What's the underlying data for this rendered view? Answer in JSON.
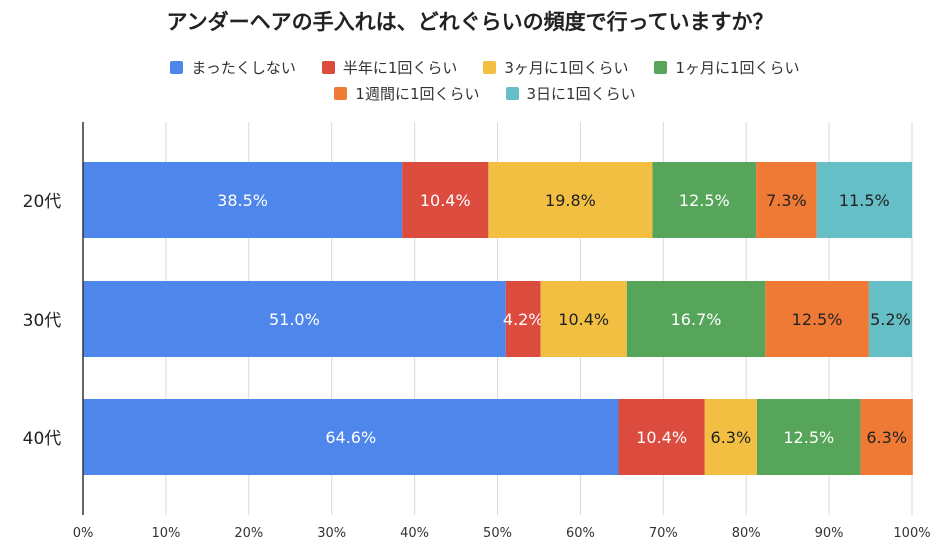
{
  "chart_data": {
    "type": "bar",
    "orientation": "horizontal",
    "stacked": true,
    "title": "アンダーヘアの手入れは、どれぐらいの頻度で行っていますか？",
    "categories": [
      "20代",
      "30代",
      "40代"
    ],
    "series": [
      {
        "name": "まったくしない",
        "color": "#4e86ec",
        "label_color": "#ffffff",
        "values": [
          38.5,
          51.0,
          64.6
        ],
        "labels": [
          "38.5%",
          "51.0%",
          "64.6%"
        ]
      },
      {
        "name": "半年に1回くらい",
        "color": "#db4c3f",
        "label_color": "#ffffff",
        "values": [
          10.4,
          4.2,
          10.4
        ],
        "labels": [
          "10.4%",
          "4.2%",
          "10.4%"
        ]
      },
      {
        "name": "3ヶ月に1回くらい",
        "color": "#f3bf42",
        "label_color": "#222222",
        "values": [
          19.8,
          10.4,
          6.3
        ],
        "labels": [
          "19.8%",
          "10.4%",
          "6.3%"
        ]
      },
      {
        "name": "1ヶ月に1回くらい",
        "color": "#57a55a",
        "label_color": "#ffffff",
        "values": [
          12.5,
          16.7,
          12.5
        ],
        "labels": [
          "12.5%",
          "16.7%",
          "12.5%"
        ]
      },
      {
        "name": "1週間に1回くらい",
        "color": "#ee7a35",
        "label_color": "#222222",
        "values": [
          7.3,
          12.5,
          6.3
        ],
        "labels": [
          "7.3%",
          "12.5%",
          "6.3%"
        ]
      },
      {
        "name": "3日に1回くらい",
        "color": "#66bec6",
        "label_color": "#222222",
        "values": [
          11.5,
          5.2,
          0
        ],
        "labels": [
          "11.5%",
          "5.2%",
          ""
        ]
      }
    ],
    "xlim": [
      0,
      100
    ],
    "x_ticks": [
      "0%",
      "10%",
      "20%",
      "30%",
      "40%",
      "50%",
      "60%",
      "70%",
      "80%",
      "90%",
      "100%"
    ],
    "grid": true,
    "legend_position": "top"
  }
}
